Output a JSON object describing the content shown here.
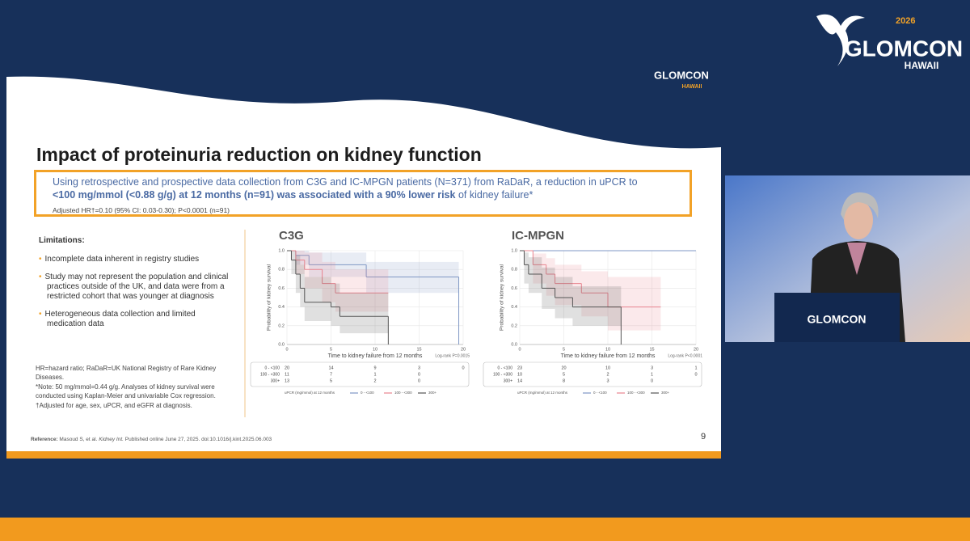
{
  "brand": {
    "logo_text": "GLOMCON",
    "logo_sub": "HAWAII",
    "year": "2026"
  },
  "slide": {
    "title": "Impact of proteinuria reduction on kidney function",
    "highlight": {
      "line1": "Using retrospective and prospective data collection from C3G and IC-MPGN patients (N=371) from RaDaR, a reduction in uPCR to",
      "bold": "<100 mg/mmol (<0.88 g/g) at 12 months (n=91) was associated with a 90% lower risk",
      "rest": "of kidney failure*",
      "stat": "Adjusted HR†=0.10 (95% CI: 0.03-0.30); P<0.0001 (n=91)"
    },
    "limitations": {
      "heading": "Limitations:",
      "items": [
        "Incomplete data inherent in registry studies",
        "Study may not represent the population and clinical practices outside of the UK, and data were from a restricted cohort that was younger at diagnosis",
        "Heterogeneous data collection and limited medication data"
      ]
    },
    "footnotes": [
      "HR=hazard ratio; RaDaR=UK National Registry of Rare Kidney Diseases.",
      "*Note: 50 mg/mmol=0.44 g/g. Analyses of kidney survival were conducted using Kaplan-Meier and univariable Cox regression.",
      "†Adjusted for age, sex, uPCR, and eGFR at diagnosis."
    ],
    "reference": {
      "label": "Reference:",
      "authors": "Masoud S, et al.",
      "journal": "Kidney Int.",
      "rest": "Published online June 27, 2025. doi:10.1016/j.kint.2025.06.003"
    },
    "page_number": "9",
    "charts": [
      {
        "type": "line",
        "title": "C3G",
        "y_label": "Probability of kidney survival",
        "x_label": "Time to kidney failure from 12 months",
        "annotation": "Log-rank P=0.0015",
        "legend_title": "uPCR (mg/mmol) at 12 months",
        "xlim": [
          0,
          20
        ],
        "ylim": [
          0,
          1
        ],
        "xticks": [
          0,
          5,
          10,
          15,
          20
        ],
        "yticks": [
          {
            "value": 0,
            "label": "0.0"
          },
          0.2,
          0.4,
          0.6,
          0.8,
          {
            "value": 1,
            "label": "1.0"
          }
        ],
        "grid": true,
        "series": [
          {
            "name": "0 - <100",
            "color": "#7f97c4",
            "x": [
              0,
              1,
              2.5,
              9,
              19.5
            ],
            "values": [
              1,
              0.95,
              0.85,
              0.72,
              0
            ],
            "lower": [
              1,
              0.85,
              0.72,
              0.55,
              0
            ],
            "upper": [
              1,
              1,
              0.98,
              0.88,
              0
            ],
            "at_risk": [
              20,
              14,
              9,
              3,
              0
            ]
          },
          {
            "name": "100 - <300",
            "color": "#e8848f",
            "x": [
              0,
              1,
              2,
              4,
              5.5,
              11.5
            ],
            "values": [
              1,
              0.9,
              0.8,
              0.65,
              0.55,
              0.55
            ],
            "lower": [
              1,
              0.75,
              0.6,
              0.45,
              0.35,
              0.35
            ],
            "upper": [
              1,
              1,
              0.98,
              0.88,
              0.8,
              0.8
            ],
            "at_risk": [
              11,
              7,
              1,
              0,
              null
            ]
          },
          {
            "name": "300+",
            "color": "#555555",
            "x": [
              0,
              0.5,
              1,
              1.5,
              2,
              5,
              6,
              11.5
            ],
            "values": [
              1,
              0.9,
              0.75,
              0.6,
              0.45,
              0.4,
              0.3,
              0
            ],
            "lower": [
              1,
              0.75,
              0.55,
              0.4,
              0.25,
              0.2,
              0.12,
              0
            ],
            "upper": [
              1,
              1,
              0.95,
              0.85,
              0.72,
              0.65,
              0.55,
              0
            ],
            "at_risk": [
              13,
              5,
              2,
              0,
              null
            ]
          }
        ]
      },
      {
        "type": "line",
        "title": "IC-MPGN",
        "y_label": "Probability of kidney survival",
        "x_label": "Time to kidney failure from 12 months",
        "annotation": "Log-rank P<0.0001",
        "legend_title": "uPCR (mg/mmol) at 12 months",
        "xlim": [
          0,
          20
        ],
        "ylim": [
          0,
          1
        ],
        "xticks": [
          0,
          5,
          10,
          15,
          20
        ],
        "yticks": [
          {
            "value": 0,
            "label": "0.0"
          },
          0.2,
          0.4,
          0.6,
          0.8,
          {
            "value": 1,
            "label": "1.0"
          }
        ],
        "grid": true,
        "series": [
          {
            "name": "0 - <100",
            "color": "#7f97c4",
            "x": [
              0,
              20
            ],
            "values": [
              1,
              1
            ],
            "lower": [
              1,
              1
            ],
            "upper": [
              1,
              1
            ],
            "at_risk": [
              23,
              20,
              10,
              3,
              1
            ]
          },
          {
            "name": "100 - <300",
            "color": "#e8848f",
            "x": [
              0,
              1.5,
              3,
              4,
              7,
              10,
              16
            ],
            "values": [
              1,
              0.85,
              0.75,
              0.65,
              0.55,
              0.4,
              0.4
            ],
            "lower": [
              1,
              0.65,
              0.52,
              0.42,
              0.3,
              0.15,
              0.15
            ],
            "upper": [
              1,
              0.97,
              0.92,
              0.85,
              0.78,
              0.72,
              0.72
            ],
            "at_risk": [
              10,
              5,
              2,
              1,
              0
            ]
          },
          {
            "name": "300+",
            "color": "#555555",
            "x": [
              0,
              0.5,
              1,
              2.5,
              4,
              6,
              11.5
            ],
            "values": [
              1,
              0.85,
              0.75,
              0.6,
              0.5,
              0.4,
              0
            ],
            "lower": [
              1,
              0.65,
              0.55,
              0.38,
              0.28,
              0.2,
              0
            ],
            "upper": [
              1,
              0.98,
              0.93,
              0.82,
              0.72,
              0.62,
              0
            ],
            "at_risk": [
              14,
              8,
              3,
              0,
              null
            ]
          }
        ]
      }
    ]
  }
}
